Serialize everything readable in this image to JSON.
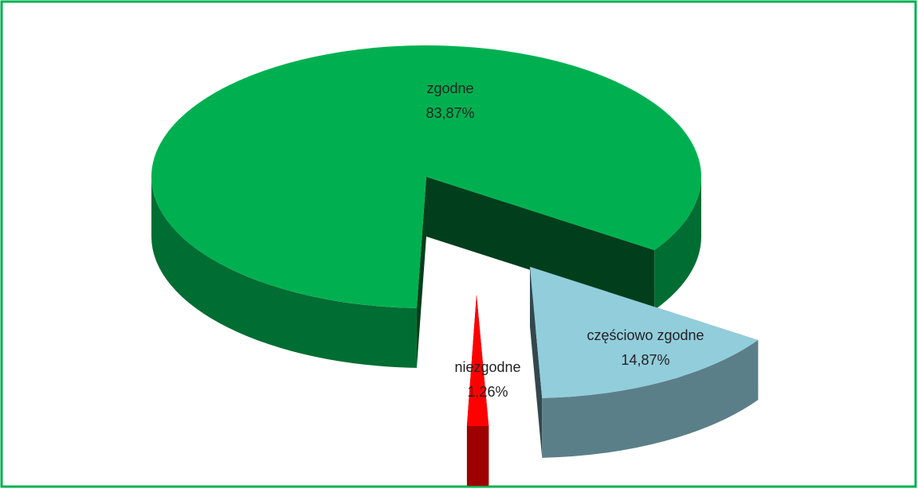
{
  "chart_data": {
    "type": "pie",
    "categories": [
      "zgodne",
      "częściowo zgodne",
      "niezgodne"
    ],
    "values": [
      83.87,
      14.87,
      1.26
    ],
    "value_labels": [
      "83,87%",
      "14,87%",
      "1,26%"
    ],
    "colors": [
      "#00b050",
      "#92cddc",
      "#ff0000"
    ]
  }
}
